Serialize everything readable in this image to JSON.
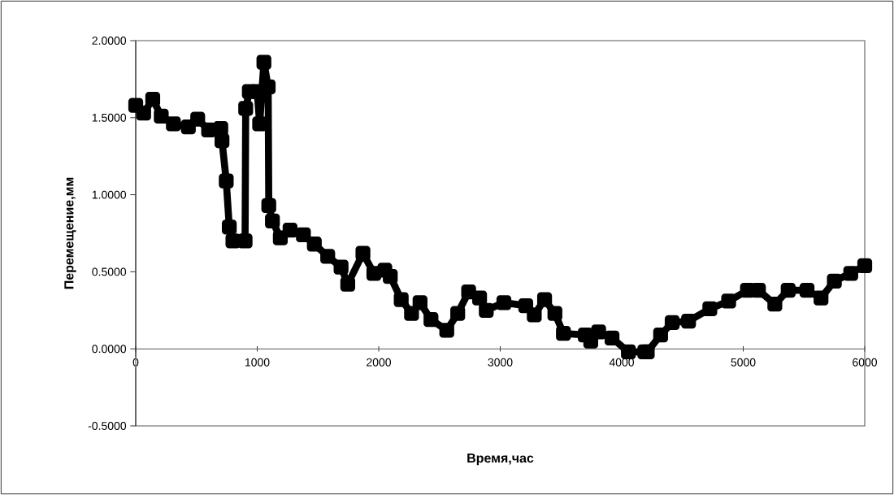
{
  "chart_data": {
    "type": "line",
    "xlabel": "Время,час",
    "ylabel": "Перемещение,мм",
    "xlim": [
      0,
      6000
    ],
    "ylim": [
      -0.5,
      2
    ],
    "xticks": [
      0,
      1000,
      2000,
      3000,
      4000,
      5000,
      6000
    ],
    "yticks": [
      {
        "value": -0.5,
        "label": "-0.5000"
      },
      {
        "value": 0,
        "label": "0.0000"
      },
      {
        "value": 0.5,
        "label": "0.5000"
      },
      {
        "value": 1,
        "label": "1.0000"
      },
      {
        "value": 1.5,
        "label": "1.5000"
      },
      {
        "value": 2,
        "label": "2.0000"
      }
    ],
    "marker": "square",
    "line_style": "solid",
    "grid": false,
    "series": [
      {
        "color": "#000000",
        "x": [
          0,
          65,
          140,
          210,
          310,
          433,
          510,
          600,
          700,
          710,
          745,
          770,
          800,
          900,
          905,
          935,
          1000,
          1020,
          1055,
          1090,
          1095,
          1125,
          1190,
          1270,
          1380,
          1470,
          1580,
          1690,
          1745,
          1870,
          1960,
          2050,
          2095,
          2185,
          2270,
          2340,
          2430,
          2560,
          2650,
          2740,
          2830,
          2885,
          3030,
          3210,
          3280,
          3365,
          3450,
          3520,
          3700,
          3745,
          3810,
          3920,
          4055,
          4190,
          4210,
          4320,
          4415,
          4550,
          4725,
          4880,
          5035,
          5125,
          5260,
          5370,
          5525,
          5640,
          5750,
          5885,
          6000
        ],
        "values": [
          1.58,
          1.53,
          1.62,
          1.51,
          1.46,
          1.44,
          1.49,
          1.42,
          1.43,
          1.35,
          1.09,
          0.79,
          0.7,
          0.7,
          1.56,
          1.67,
          1.67,
          1.46,
          1.86,
          1.7,
          0.93,
          0.83,
          0.72,
          0.77,
          0.74,
          0.68,
          0.6,
          0.53,
          0.42,
          0.62,
          0.49,
          0.51,
          0.47,
          0.32,
          0.23,
          0.3,
          0.19,
          0.12,
          0.23,
          0.37,
          0.33,
          0.25,
          0.3,
          0.28,
          0.22,
          0.32,
          0.23,
          0.1,
          0.09,
          0.05,
          0.11,
          0.07,
          -0.02,
          -0.02,
          -0.02,
          0.09,
          0.17,
          0.18,
          0.26,
          0.31,
          0.38,
          0.38,
          0.29,
          0.38,
          0.38,
          0.33,
          0.44,
          0.49,
          0.54
        ]
      }
    ]
  }
}
